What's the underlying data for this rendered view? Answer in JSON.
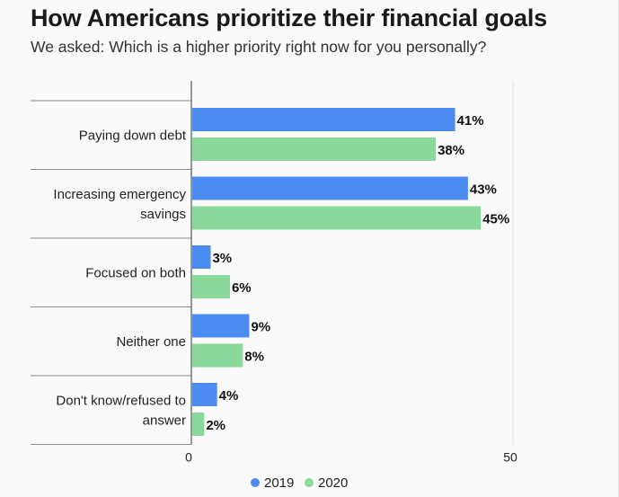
{
  "header": {
    "title": "How Americans prioritize their financial goals",
    "subtitle": "We asked: Which is a higher priority right now for you personally?"
  },
  "colors": {
    "series_2019": "#4c8cf0",
    "series_2020": "#8bd99a",
    "divider": "#8a8a8a",
    "grid": "#e2e2e2",
    "axis": "#333333"
  },
  "chart_data": {
    "type": "bar",
    "orientation": "horizontal",
    "title": "How Americans prioritize their financial goals",
    "subtitle": "We asked: Which is a higher priority right now for you personally?",
    "categories": [
      [
        "Paying down debt"
      ],
      [
        "Increasing emergency",
        "savings"
      ],
      [
        "Focused on both"
      ],
      [
        "Neither one"
      ],
      [
        "Don't know/refused to",
        "answer"
      ]
    ],
    "series": [
      {
        "name": "2019",
        "values": [
          41,
          43,
          3,
          9,
          4
        ],
        "labels": [
          "41%",
          "43%",
          "3%",
          "9%",
          "4%"
        ]
      },
      {
        "name": "2020",
        "values": [
          38,
          45,
          6,
          8,
          2
        ],
        "labels": [
          "38%",
          "45%",
          "6%",
          "8%",
          "2%"
        ]
      }
    ],
    "xlim": [
      0,
      50
    ],
    "ticks": [
      0,
      50
    ],
    "tick_labels": [
      "0",
      "50"
    ],
    "legend": {
      "position": "bottom",
      "entries": [
        "2019",
        "2020"
      ]
    }
  }
}
